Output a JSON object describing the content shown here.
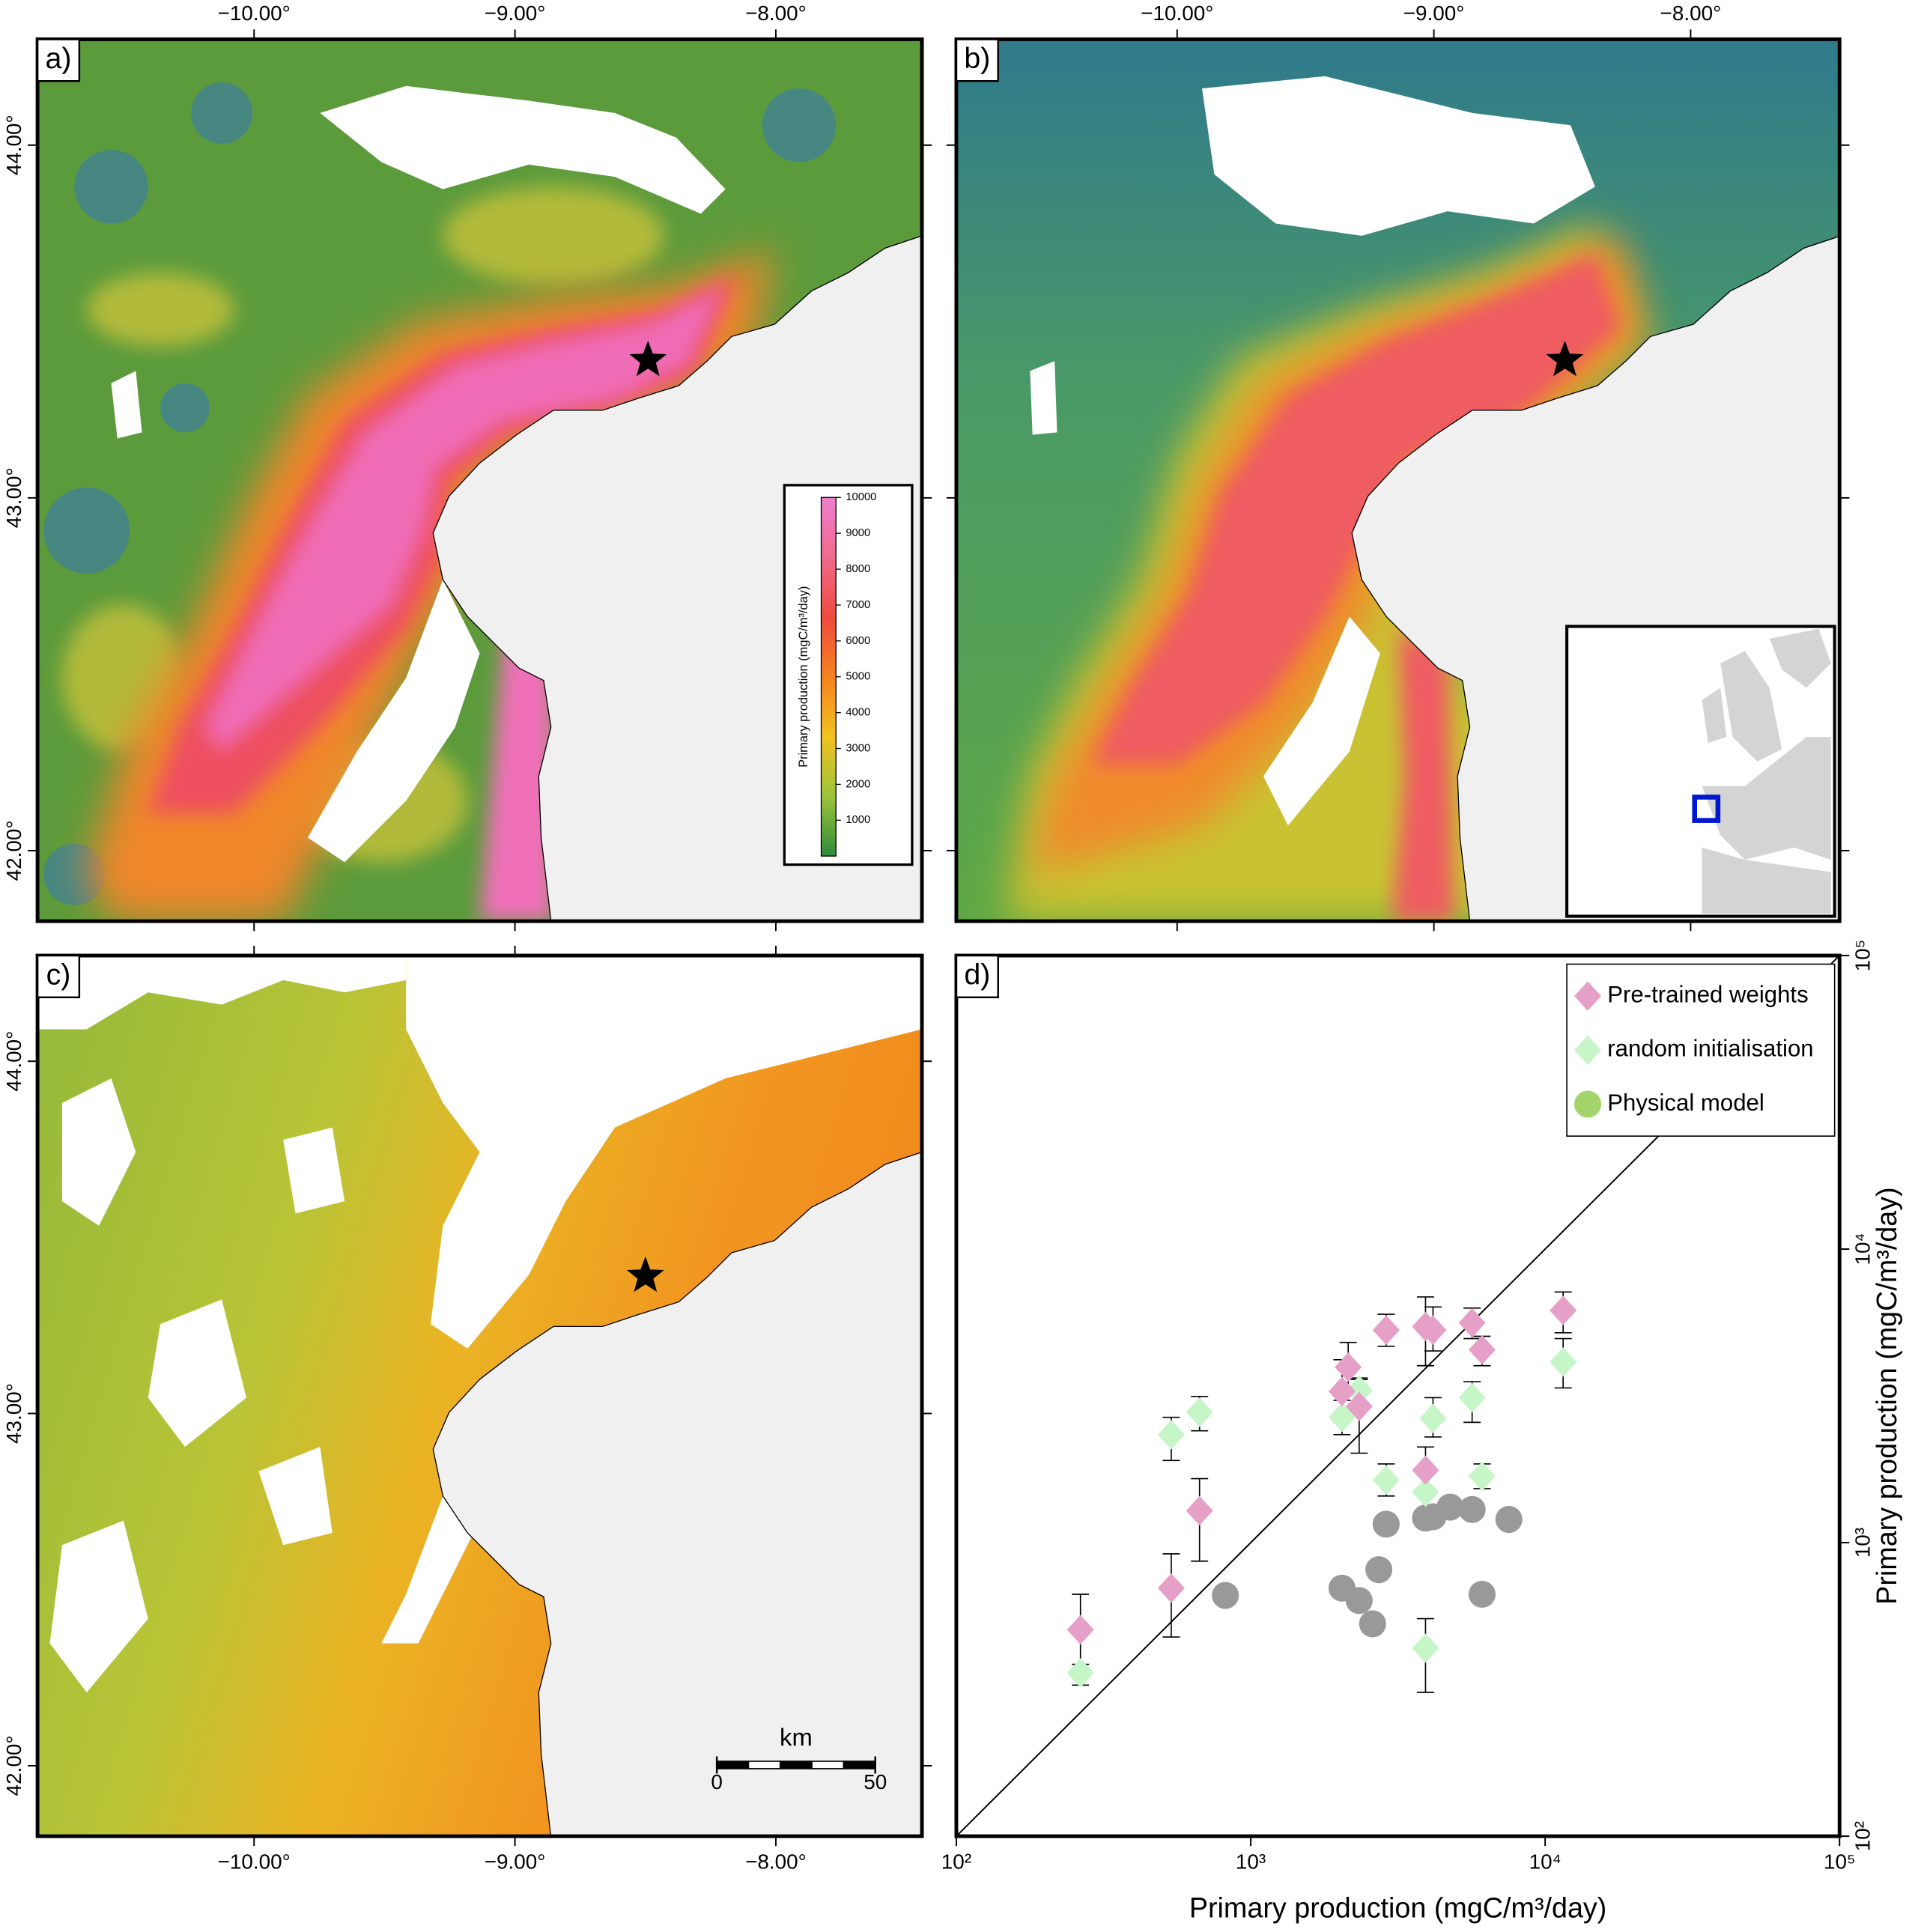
{
  "chart_data": [
    {
      "type": "map",
      "panel_label": "a)",
      "xlim": [
        -10.83,
        -7.44
      ],
      "ylim": [
        41.8,
        44.3
      ],
      "xticks": [
        {
          "value": -10,
          "label": "−10.00°"
        },
        {
          "value": -9,
          "label": "−9.00°"
        },
        {
          "value": -8,
          "label": "−8.00°"
        }
      ],
      "yticks": [
        {
          "value": 42,
          "label": "42.00°"
        },
        {
          "value": 43,
          "label": "43.00°"
        },
        {
          "value": 44,
          "label": "44.00°"
        }
      ],
      "xlabel_side": "top",
      "ylabel_side": "left",
      "marker": {
        "lon": -8.49,
        "lat": 43.39
      },
      "colorbar": {
        "label": "Primary production (mgC/m³/day)",
        "lim": [
          0,
          10000
        ],
        "ticks": [
          1000,
          2000,
          3000,
          4000,
          5000,
          6000,
          7000,
          8000,
          9000,
          10000
        ],
        "colors": [
          "#2e8b3a",
          "#9cc43a",
          "#f2c21f",
          "#f5821f",
          "#ef4b3f",
          "#f06a8c",
          "#ee7fd0"
        ]
      }
    },
    {
      "type": "map",
      "panel_label": "b)",
      "xlim": [
        -10.86,
        -7.42
      ],
      "ylim": [
        41.8,
        44.3
      ],
      "xticks": [
        {
          "value": -10,
          "label": "−10.00°"
        },
        {
          "value": -9,
          "label": "−9.00°"
        },
        {
          "value": -8,
          "label": "−8.00°"
        }
      ],
      "yticks": [
        42,
        43,
        44
      ],
      "xlabel_side": "top",
      "ylabel_side": "none",
      "marker": {
        "lon": -8.49,
        "lat": 43.39
      }
    },
    {
      "type": "map",
      "panel_label": "c)",
      "xlim": [
        -10.83,
        -7.44
      ],
      "ylim": [
        41.8,
        44.3
      ],
      "xticks": [
        {
          "value": -10,
          "label": "−10.00°"
        },
        {
          "value": -9,
          "label": "−9.00°"
        },
        {
          "value": -8,
          "label": "−8.00°"
        }
      ],
      "yticks": [
        {
          "value": 42,
          "label": "42.00°"
        },
        {
          "value": 43,
          "label": "43.00°"
        },
        {
          "value": 44,
          "label": "44.00°"
        }
      ],
      "xlabel_side": "bottom",
      "ylabel_side": "left",
      "marker": {
        "lon": -8.5,
        "lat": 43.39
      },
      "scale_bar": {
        "title": "km",
        "ticks": [
          0,
          50
        ]
      }
    },
    {
      "type": "scatter",
      "panel_label": "d)",
      "xscale": "log",
      "yscale": "log",
      "xlabel": "Primary production (mgC/m³/day)",
      "ylabel": "Primary production (mgC/m³/day)",
      "xlim": [
        100,
        100000
      ],
      "ylim": [
        100,
        100000
      ],
      "xticks": [
        {
          "value": 100,
          "label": "10²"
        },
        {
          "value": 1000,
          "label": "10³"
        },
        {
          "value": 10000,
          "label": "10⁴"
        },
        {
          "value": 100000,
          "label": "10⁵"
        }
      ],
      "yticks": [
        {
          "value": 100,
          "label": "10²"
        },
        {
          "value": 1000,
          "label": "10³"
        },
        {
          "value": 10000,
          "label": "10⁴"
        },
        {
          "value": 100000,
          "label": "10⁵"
        }
      ],
      "identity_line": true,
      "legend": "upper right",
      "series": [
        {
          "name": "Pre-trained weights",
          "color": "#e6a0c8",
          "marker": "diamond",
          "x": [
            264,
            537,
            670,
            2042,
            2143,
            2335,
            2884,
            3924,
            4160,
            3924,
            5649,
            6106,
            11510
          ],
          "values": [
            505,
            700,
            1285,
            3273,
            3963,
            2911,
            5297,
            5445,
            5297,
            1766,
            5608,
            4540,
            6180
          ],
          "lower": [
            374,
            477,
            865,
            2570,
            3206,
            2018,
            4667,
            4007,
            4497,
            1442,
            4955,
            4007,
            5188
          ],
          "upper": [
            667,
            916,
            1652,
            4198,
            4808,
            3639,
            6000,
            6870,
            6353,
            2118,
            6295,
            5046,
            7145
          ]
        },
        {
          "name": "random initialisation",
          "color": "#c6f5c8",
          "marker": "diamond",
          "x": [
            264,
            537,
            670,
            2042,
            2335,
            2884,
            3924,
            4160,
            3924,
            5649,
            6106,
            11510
          ],
          "values": [
            360,
            2333,
            2780,
            2673,
            3304,
            1633,
            1486,
            2650,
            437,
            3119,
            1683,
            4124
          ],
          "lower": [
            327,
            1905,
            2404,
            2333,
            2911,
            1442,
            1285,
            2291,
            309,
            2570,
            1528,
            3365
          ],
          "upper": [
            385,
            2673,
            3148,
            3055,
            3597,
            1854,
            1714,
            3119,
            551,
            3532,
            1854,
            4955
          ]
        },
        {
          "name": "Physical model",
          "color": "#999999",
          "legend_color": "#a3d46a",
          "marker": "circle",
          "x": [
            820,
            2042,
            2335,
            2594,
            2723,
            2884,
            3924,
            4160,
            4757,
            5649,
            6106,
            7530
          ],
          "values": [
            661,
            700,
            635,
            529,
            809,
            1156,
            1213,
            1225,
            1322,
            1297,
            667,
            1200
          ]
        }
      ]
    }
  ]
}
